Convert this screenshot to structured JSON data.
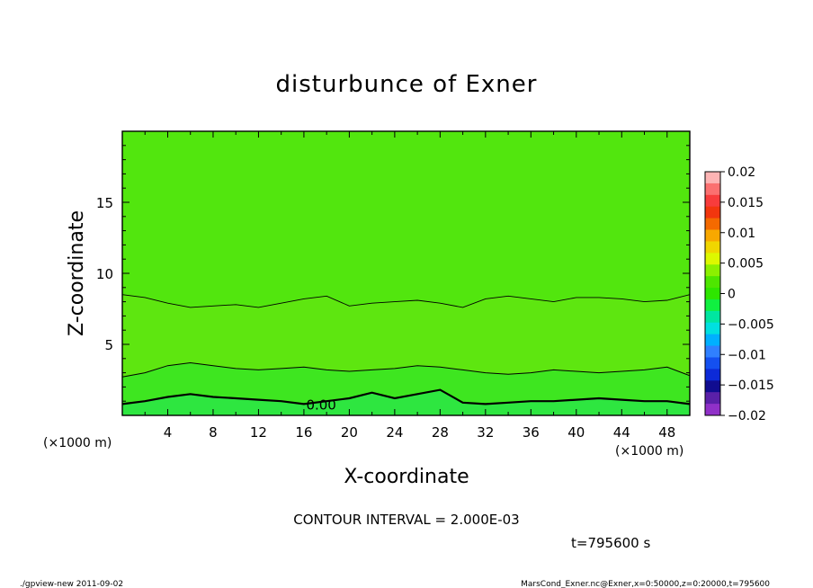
{
  "chart_data": {
    "type": "contour",
    "title": "disturbunce of Exner",
    "xlabel": "X-coordinate",
    "ylabel": "Z-coordinate",
    "x_unit_left": "(×1000 m)",
    "x_unit_right": "(×1000 m)",
    "xlim": [
      0,
      50
    ],
    "ylim": [
      0,
      20
    ],
    "x_ticks": [
      4,
      8,
      12,
      16,
      20,
      24,
      28,
      32,
      36,
      40,
      44,
      48
    ],
    "x_tick_labels": [
      "4",
      "8",
      "12",
      "16",
      "20",
      "24",
      "28",
      "32",
      "36",
      "40",
      "44",
      "48"
    ],
    "y_ticks": [
      5,
      10,
      15
    ],
    "y_tick_labels": [
      "5",
      "10",
      "15"
    ],
    "contour_label": "0.00",
    "contour_interval_text": "CONTOUR INTERVAL = 2.000E-03",
    "time_text": "t=795600 s",
    "colorbar": {
      "min": -0.02,
      "max": 0.02,
      "tick_values": [
        0.02,
        0.015,
        0.01,
        0.005,
        0,
        -0.005,
        -0.01,
        -0.015,
        -0.02
      ],
      "tick_labels": [
        "0.02",
        "0.015",
        "0.01",
        "0.005",
        "0",
        "−0.005",
        "−0.01",
        "−0.015",
        "−0.02"
      ],
      "colors_top_to_bottom": [
        "#fdb4b4",
        "#fb7070",
        "#f83c3c",
        "#f2360e",
        "#f46a00",
        "#f8a800",
        "#f0d600",
        "#ddf800",
        "#8cf000",
        "#4ee600",
        "#2ee600",
        "#10f040",
        "#00e6a0",
        "#00e0e0",
        "#00b0ff",
        "#3080ff",
        "#1450f0",
        "#0c2ad8",
        "#100c90",
        "#5a20a8",
        "#9030c8"
      ]
    },
    "contours": [
      {
        "level": -0.002,
        "x": [
          0,
          2,
          4,
          6,
          8,
          10,
          12,
          14,
          16,
          18,
          20,
          22,
          24,
          26,
          28,
          30,
          32,
          34,
          36,
          38,
          40,
          42,
          44,
          46,
          48,
          50
        ],
        "z": [
          0.8,
          1.0,
          1.3,
          1.5,
          1.3,
          1.2,
          1.1,
          1.0,
          0.8,
          1.0,
          1.2,
          1.6,
          1.2,
          1.5,
          1.8,
          0.9,
          0.8,
          0.9,
          1.0,
          1.0,
          1.1,
          1.2,
          1.1,
          1.0,
          1.0,
          0.8
        ]
      },
      {
        "level": 0.0,
        "x": [
          0,
          2,
          4,
          6,
          8,
          10,
          12,
          14,
          16,
          18,
          20,
          22,
          24,
          26,
          28,
          30,
          32,
          34,
          36,
          38,
          40,
          42,
          44,
          46,
          48,
          50
        ],
        "z": [
          2.7,
          3.0,
          3.5,
          3.7,
          3.5,
          3.3,
          3.2,
          3.3,
          3.4,
          3.2,
          3.1,
          3.2,
          3.3,
          3.5,
          3.4,
          3.2,
          3.0,
          2.9,
          3.0,
          3.2,
          3.1,
          3.0,
          3.1,
          3.2,
          3.4,
          2.8
        ]
      },
      {
        "level": 0.002,
        "x": [
          0,
          2,
          4,
          6,
          8,
          10,
          12,
          14,
          16,
          18,
          20,
          22,
          24,
          26,
          28,
          30,
          32,
          34,
          36,
          38,
          40,
          42,
          44,
          46,
          48,
          50
        ],
        "z": [
          8.5,
          8.3,
          7.9,
          7.6,
          7.7,
          7.8,
          7.6,
          7.9,
          8.2,
          8.4,
          7.7,
          7.9,
          8.0,
          8.1,
          7.9,
          7.6,
          8.2,
          8.4,
          8.2,
          8.0,
          8.3,
          8.3,
          8.2,
          8.0,
          8.1,
          8.5
        ]
      }
    ]
  },
  "footer": {
    "left": "./gpview-new  2011-09-02",
    "right": "MarsCond_Exner.nc@Exner,x=0:50000,z=0:20000,t=795600"
  }
}
